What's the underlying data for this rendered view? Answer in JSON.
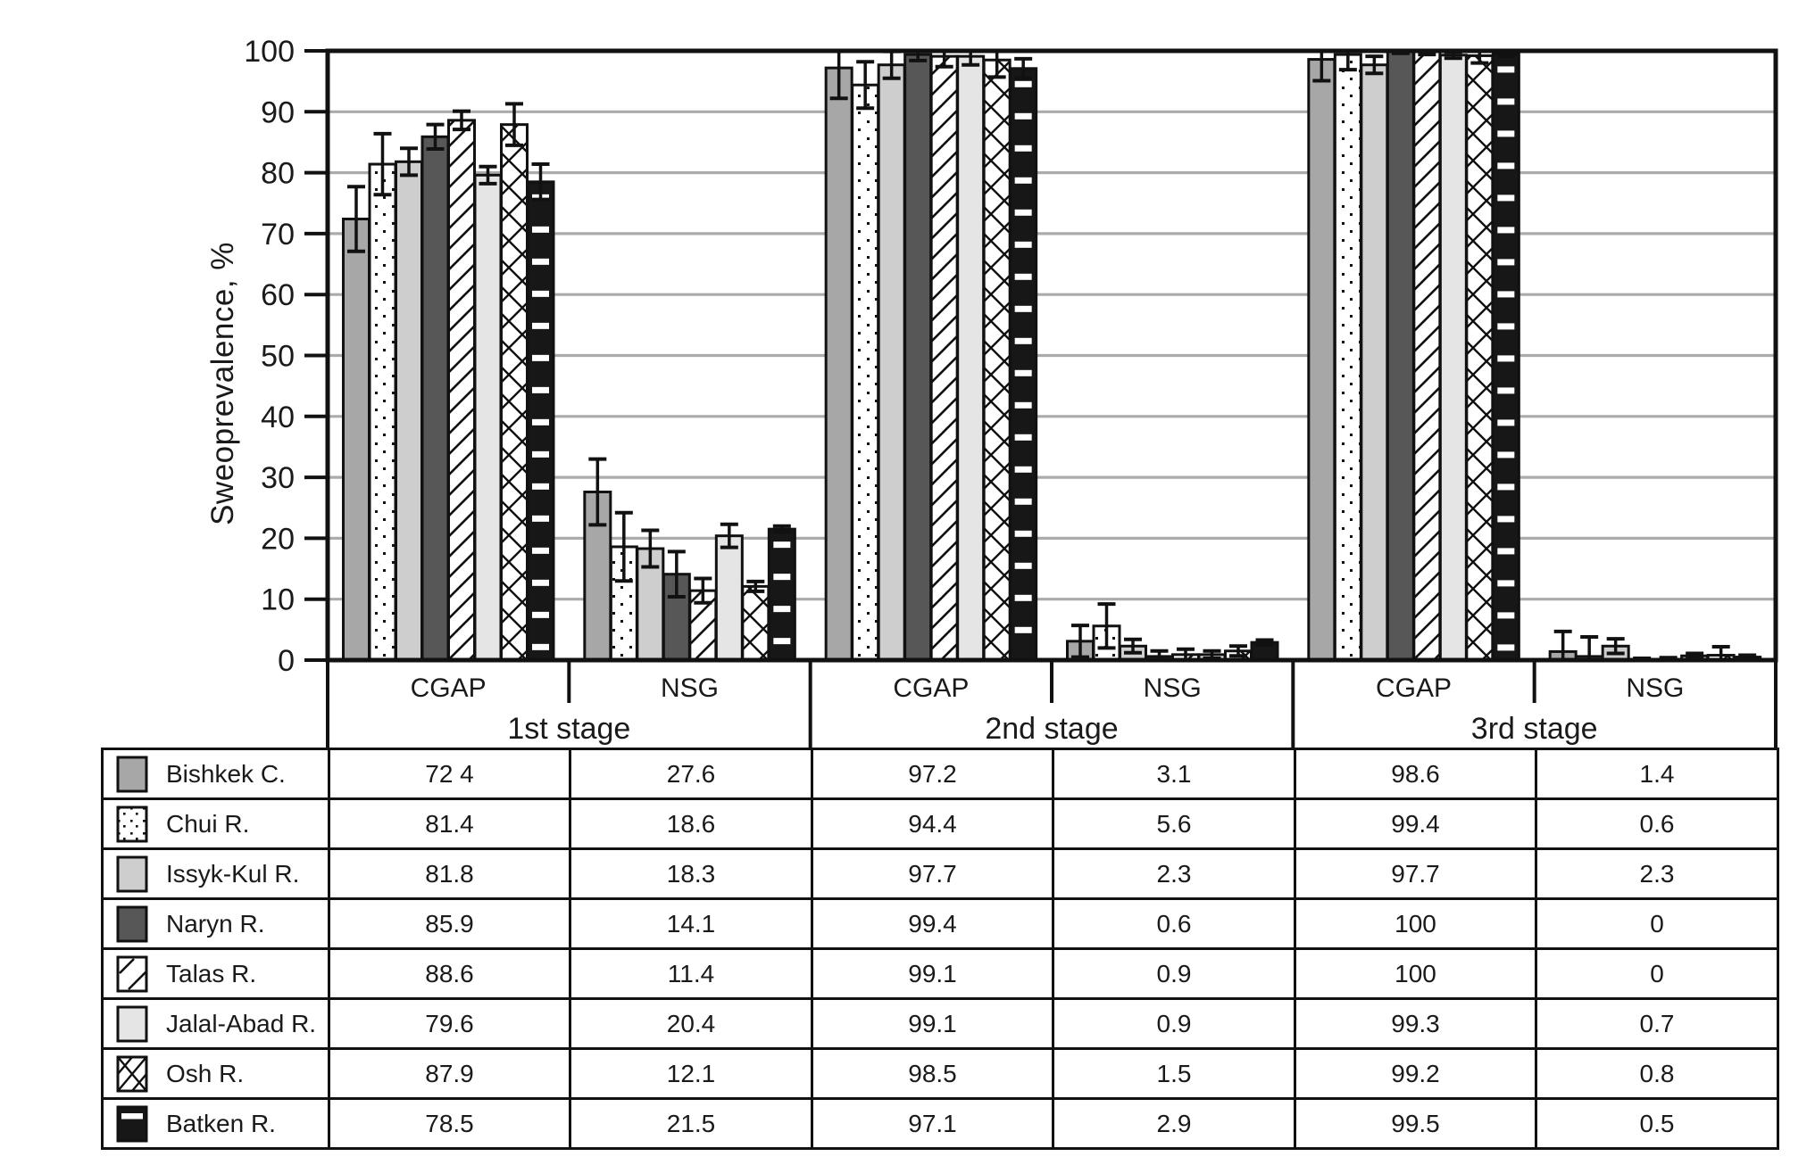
{
  "chart_data": {
    "type": "bar",
    "title": "",
    "ylabel": "Sweoprevalence, %",
    "ylim": [
      0,
      100
    ],
    "ytick_step": 10,
    "yticks": [
      0,
      10,
      20,
      30,
      40,
      50,
      60,
      70,
      80,
      90,
      100
    ],
    "grid": "horizontal gray lines at each 10%",
    "legend_position": "table-left-column",
    "band": {
      "groups": [
        "CGAP",
        "NSG",
        "CGAP",
        "NSG",
        "CGAP",
        "NSG"
      ],
      "stages": [
        "1st stage",
        "2nd stage",
        "3rd stage"
      ]
    },
    "columns": [
      "CGAP 1st stage",
      "NSG 1st stage",
      "CGAP 2nd stage",
      "NSG 2nd stage",
      "CGAP 3rd stage",
      "NSG 3rd stage"
    ],
    "series": [
      {
        "name": "Bishkek C.",
        "style": {
          "type": "solid",
          "fill": "#a7a7a7"
        },
        "values": [
          72.4,
          27.6,
          97.2,
          3.1,
          98.6,
          1.4
        ],
        "errors": [
          5.3,
          5.4,
          5.0,
          2.6,
          3.5,
          3.3
        ]
      },
      {
        "name": "Chui R.",
        "style": {
          "type": "dots"
        },
        "values": [
          81.4,
          18.6,
          94.4,
          5.6,
          99.4,
          0.6
        ],
        "errors": [
          5.0,
          5.6,
          3.8,
          3.6,
          2.5,
          3.2
        ]
      },
      {
        "name": "Issyk-Kul R.",
        "style": {
          "type": "solid",
          "fill": "#cecece"
        },
        "values": [
          81.8,
          18.3,
          97.7,
          2.3,
          97.7,
          2.3
        ],
        "errors": [
          2.2,
          3.0,
          2.2,
          1.1,
          1.4,
          1.2
        ]
      },
      {
        "name": "Naryn R.",
        "style": {
          "type": "solid",
          "fill": "#575757"
        },
        "values": [
          85.9,
          14.1,
          99.4,
          0.6,
          100,
          0
        ],
        "errors": [
          2.0,
          3.7,
          1.0,
          0.9,
          0.4,
          0.3
        ]
      },
      {
        "name": "Talas R.",
        "style": {
          "type": "diagonal"
        },
        "values": [
          88.6,
          11.4,
          99.1,
          0.9,
          100,
          0
        ],
        "errors": [
          1.5,
          2.0,
          1.7,
          0.9,
          0.6,
          0.4
        ]
      },
      {
        "name": "Jalal-Abad R.",
        "style": {
          "type": "solid",
          "fill": "#e5e5e5"
        },
        "values": [
          79.6,
          20.4,
          99.1,
          0.9,
          99.3,
          0.7
        ],
        "errors": [
          1.4,
          1.9,
          1.4,
          0.6,
          0.5,
          0.4
        ]
      },
      {
        "name": "Osh R.",
        "style": {
          "type": "crosshatch"
        },
        "values": [
          87.9,
          12.1,
          98.5,
          1.5,
          99.2,
          0.8
        ],
        "errors": [
          3.4,
          0.8,
          2.8,
          0.8,
          1.2,
          1.4
        ]
      },
      {
        "name": "Batken R.",
        "style": {
          "type": "hdash",
          "fill": "#171717"
        },
        "values": [
          78.5,
          21.5,
          97.1,
          2.9,
          99.5,
          0.5
        ],
        "errors": [
          2.9,
          0.5,
          1.6,
          0.4,
          0.4,
          0.3
        ]
      }
    ]
  },
  "table": {
    "rows": [
      {
        "label": "Bishkek C.",
        "cells": [
          "72 4",
          "27.6",
          "97.2",
          "3.1",
          "98.6",
          "1.4"
        ]
      },
      {
        "label": "Chui R.",
        "cells": [
          "81.4",
          "18.6",
          "94.4",
          "5.6",
          "99.4",
          "0.6"
        ]
      },
      {
        "label": "Issyk-Kul R.",
        "cells": [
          "81.8",
          "18.3",
          "97.7",
          "2.3",
          "97.7",
          "2.3"
        ]
      },
      {
        "label": "Naryn R.",
        "cells": [
          "85.9",
          "14.1",
          "99.4",
          "0.6",
          "100",
          "0"
        ]
      },
      {
        "label": "Talas R.",
        "cells": [
          "88.6",
          "11.4",
          "99.1",
          "0.9",
          "100",
          "0"
        ]
      },
      {
        "label": "Jalal-Abad R.",
        "cells": [
          "79.6",
          "20.4",
          "99.1",
          "0.9",
          "99.3",
          "0.7"
        ]
      },
      {
        "label": "Osh R.",
        "cells": [
          "87.9",
          "12.1",
          "98.5",
          "1.5",
          "99.2",
          "0.8"
        ]
      },
      {
        "label": "Batken R.",
        "cells": [
          "78.5",
          "21.5",
          "97.1",
          "2.9",
          "99.5",
          "0.5"
        ]
      }
    ]
  },
  "colors": {
    "frame": "#111111",
    "gridline": "#ababab",
    "bar_border": "#111111",
    "text": "#1a1a1a",
    "background": "#ffffff"
  }
}
